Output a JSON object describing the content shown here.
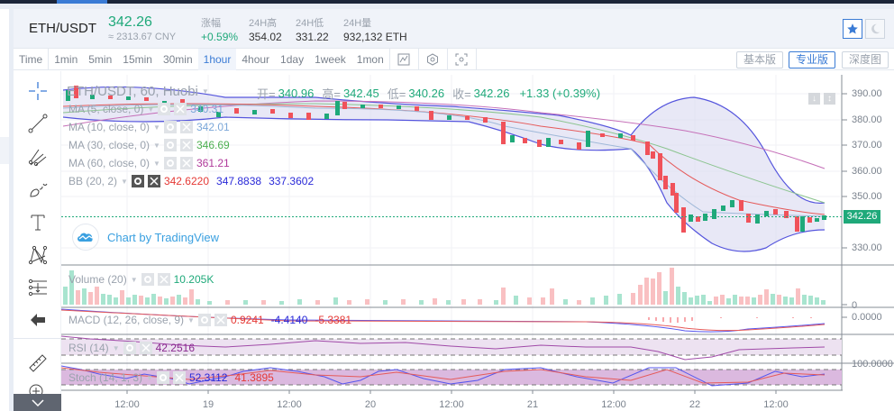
{
  "header": {
    "pair": "ETH/USDT",
    "last_price": "342.26",
    "cny_price": "≈ 2313.67 CNY",
    "stats": [
      {
        "label": "涨幅",
        "value": "+0.59%",
        "color": "green"
      },
      {
        "label": "24H高",
        "value": "354.02"
      },
      {
        "label": "24H低",
        "value": "331.22"
      },
      {
        "label": "24H量",
        "value": "932,132 ETH"
      }
    ],
    "favorite_icon": "star-icon",
    "theme_icon": "moon-icon"
  },
  "toolbar": {
    "intervals": [
      "Time",
      "1min",
      "5min",
      "15min",
      "30min",
      "1hour",
      "4hour",
      "1day",
      "1week",
      "1mon"
    ],
    "active_interval": "1hour",
    "icons": [
      "indicator-icon",
      "settings-hex-icon",
      "screenshot-icon"
    ],
    "view_buttons": [
      "基本版",
      "专业版",
      "深度图"
    ],
    "active_view": "专业版"
  },
  "draw_tools": [
    "crosshair-icon",
    "trend-line-icon",
    "fib-icon",
    "brush-icon",
    "text-icon",
    "pattern-icon",
    "measure-lines-icon",
    "back-arrow-icon",
    "ruler-icon",
    "zoom-in-icon",
    "collapse-icon"
  ],
  "chart": {
    "symbol_title": "ETH/USDT, 60, Huobi",
    "ohlc": {
      "open_label": "开=",
      "open": "340.96",
      "high_label": "高=",
      "high": "342.45",
      "low_label": "低=",
      "low": "340.26",
      "close_label": "收=",
      "close": "342.26",
      "change": "+1.33 (+0.39%)"
    },
    "indicators": [
      {
        "name": "MA (5, close, 0)",
        "values": [
          "340.31"
        ],
        "colors": [
          "#7ba7d8"
        ]
      },
      {
        "name": "MA (10, close, 0)",
        "values": [
          "342.01"
        ],
        "colors": [
          "#7ba7d8"
        ]
      },
      {
        "name": "MA (30, close, 0)",
        "values": [
          "346.69"
        ],
        "colors": [
          "#4caf50"
        ]
      },
      {
        "name": "MA (60, close, 0)",
        "values": [
          "361.21"
        ],
        "colors": [
          "#b03a9a"
        ]
      },
      {
        "name": "BB (20, 2)",
        "values": [
          "342.6220",
          "347.8838",
          "337.3602"
        ],
        "colors": [
          "#e53935",
          "#2a2ad8",
          "#2a2ad8"
        ]
      }
    ],
    "watermark": "Chart by TradingView",
    "current_price_tag": "342.26",
    "y_axis": [
      "390.00",
      "380.00",
      "370.00",
      "360.00",
      "350.00",
      "330.00"
    ],
    "x_axis": [
      "12:00",
      "19",
      "12:00",
      "20",
      "12:00",
      "21",
      "12:00",
      "22",
      "12:00"
    ],
    "volume": {
      "name": "Volume (20)",
      "value": "10.205K",
      "axis": "0"
    },
    "macd": {
      "name": "MACD (12, 26, close, 9)",
      "values": [
        "0.9241",
        "-4.4140",
        "-5.3381"
      ],
      "axis": "0.0000"
    },
    "rsi": {
      "name": "RSI (14)",
      "value": "42.2516"
    },
    "stoch": {
      "name": "Stoch (14, 1, 3)",
      "values": [
        "52.3112",
        "41.3895"
      ],
      "axis": "100.0000"
    }
  },
  "colors": {
    "up": "#1fa97a",
    "down": "#f0525a",
    "accent": "#3a7bd5",
    "bb_band": "#5555dd"
  }
}
